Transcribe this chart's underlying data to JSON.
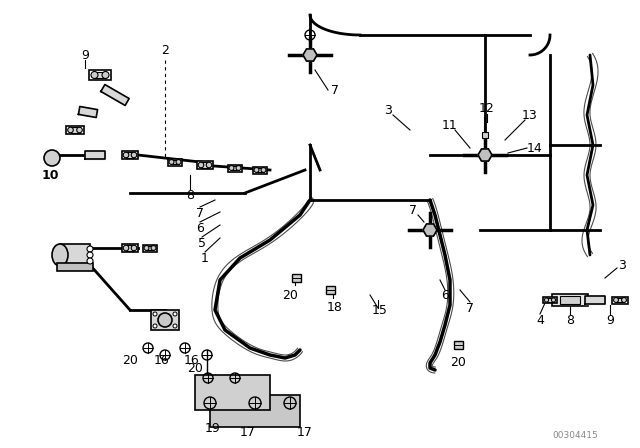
{
  "bg_color": "#ffffff",
  "line_color": "#000000",
  "watermark": "00304415",
  "fig_width": 6.4,
  "fig_height": 4.48,
  "dpi": 100
}
